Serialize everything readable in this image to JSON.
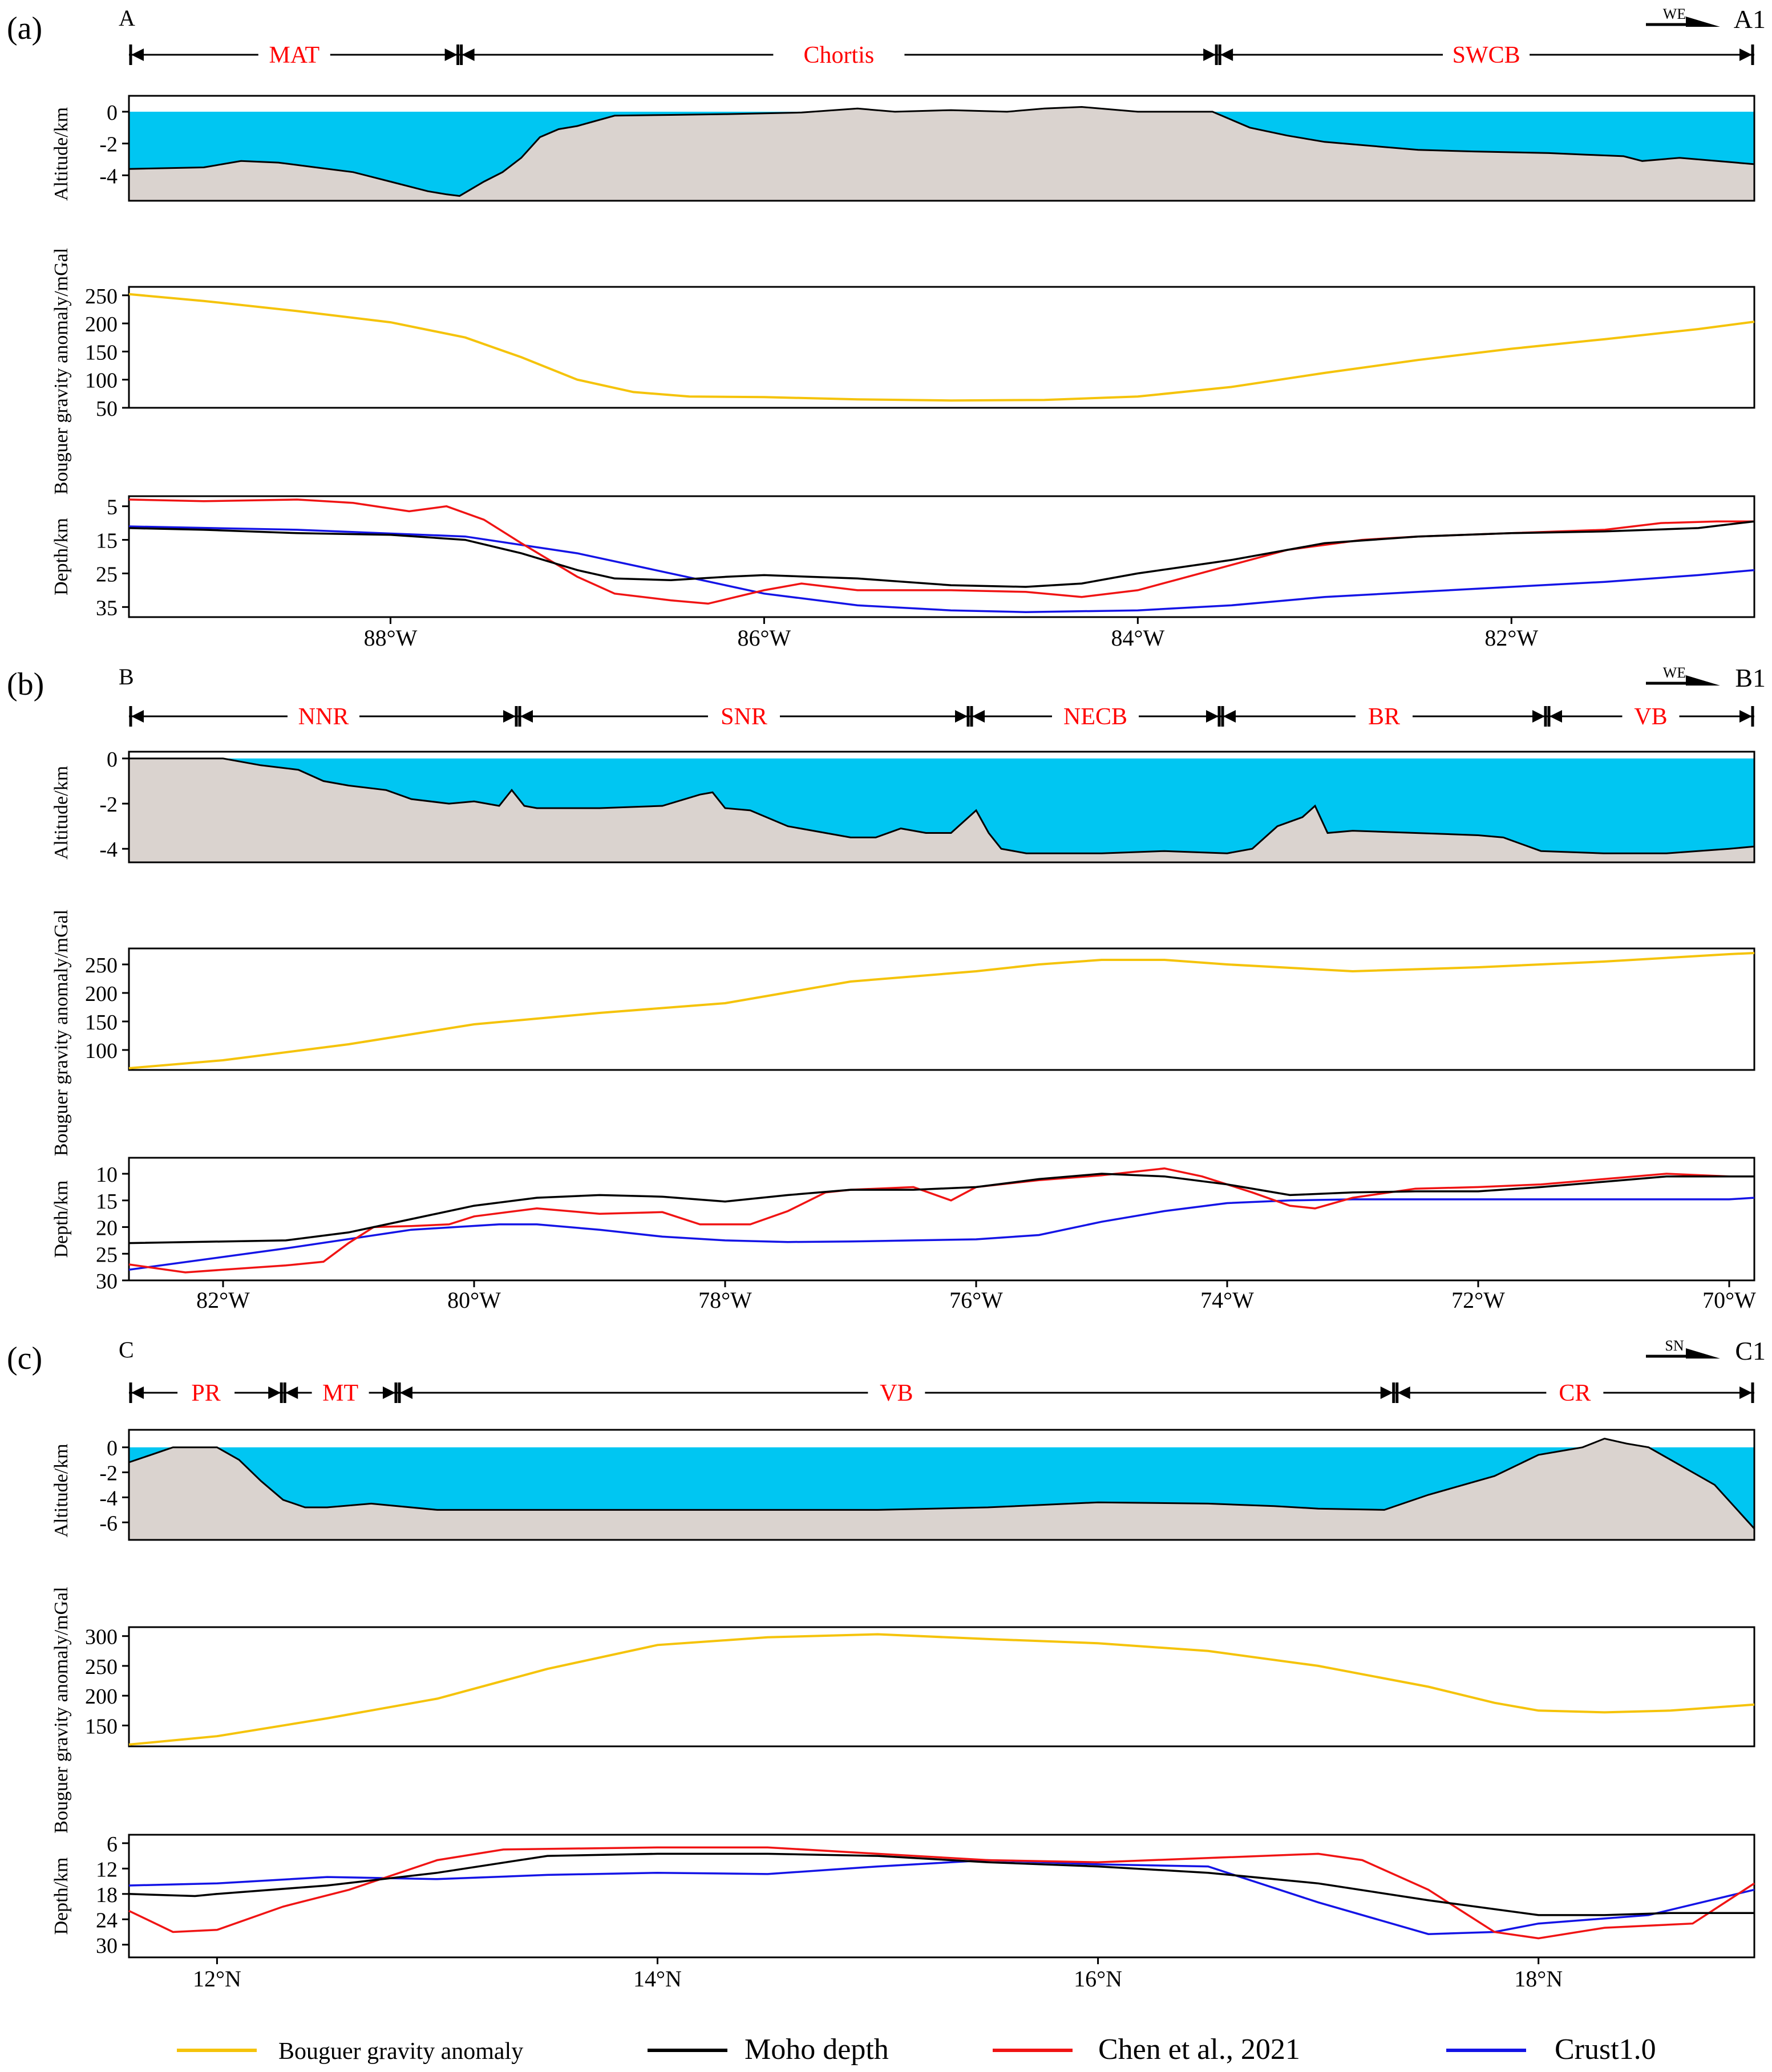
{
  "colors": {
    "sea": "#00c6f2",
    "land": "#dad3cf",
    "bouguer": "#f5c30a",
    "moho": "#000000",
    "chen": "#f01414",
    "crust": "#1414e6",
    "label_red": "#ff0000"
  },
  "legend": [
    {
      "key": "bouguer",
      "label": "Bouguer gravity anomaly"
    },
    {
      "key": "moho",
      "label": "Moho depth"
    },
    {
      "key": "chen",
      "label": "Chen et al., 2021"
    },
    {
      "key": "crust",
      "label": "Crust1.0"
    }
  ],
  "chart_data": [
    {
      "type": "line",
      "panel_label": "(a)",
      "start_label": "A",
      "end_label": "A1",
      "direction": "WE",
      "x_unit": "W",
      "xlim": [
        -89.4,
        -80.7
      ],
      "xticks": [
        -88,
        -86,
        -84,
        -82
      ],
      "xtick_labels": [
        "88°W",
        "86°W",
        "84°W",
        "82°W"
      ],
      "regions": [
        {
          "name": "MAT",
          "from": -89.4,
          "to": -87.63
        },
        {
          "name": "Chortis",
          "from": -87.63,
          "to": -83.57
        },
        {
          "name": "SWCB",
          "from": -83.57,
          "to": -80.7
        }
      ],
      "altitude": {
        "ylabel": "Altitude/km",
        "ylim": [
          -5.6,
          1.0
        ],
        "yticks": [
          0,
          -2,
          -4
        ],
        "x": [
          -89.4,
          -89.0,
          -88.8,
          -88.6,
          -88.4,
          -88.2,
          -88.0,
          -87.8,
          -87.7,
          -87.63,
          -87.5,
          -87.4,
          -87.3,
          -87.2,
          -87.1,
          -87.0,
          -86.8,
          -86.5,
          -86.2,
          -86.0,
          -85.8,
          -85.5,
          -85.3,
          -85.0,
          -84.7,
          -84.5,
          -84.3,
          -84.0,
          -83.8,
          -83.6,
          -83.4,
          -83.2,
          -83.0,
          -82.7,
          -82.5,
          -82.2,
          -82.0,
          -81.8,
          -81.6,
          -81.4,
          -81.3,
          -81.1,
          -80.9,
          -80.7
        ],
        "y": [
          -3.6,
          -3.5,
          -3.1,
          -3.2,
          -3.5,
          -3.8,
          -4.4,
          -5.0,
          -5.2,
          -5.3,
          -4.4,
          -3.8,
          -2.9,
          -1.6,
          -1.1,
          -0.9,
          -0.25,
          -0.2,
          -0.15,
          -0.1,
          -0.05,
          0.2,
          0.0,
          0.1,
          0.0,
          0.2,
          0.3,
          0.0,
          0.0,
          0.0,
          -1.0,
          -1.5,
          -1.9,
          -2.2,
          -2.4,
          -2.5,
          -2.55,
          -2.6,
          -2.7,
          -2.8,
          -3.1,
          -2.9,
          -3.1,
          -3.3
        ]
      },
      "gravity": {
        "ylabel": "Bouguer gravity anomaly/mGal",
        "ylim": [
          50,
          265
        ],
        "yticks": [
          250,
          200,
          150,
          100,
          50
        ],
        "x": [
          -89.4,
          -89.0,
          -88.5,
          -88.0,
          -87.6,
          -87.3,
          -87.0,
          -86.7,
          -86.4,
          -86.0,
          -85.5,
          -85.0,
          -84.5,
          -84.0,
          -83.5,
          -83.0,
          -82.5,
          -82.0,
          -81.5,
          -81.0,
          -80.7
        ],
        "y": [
          252,
          240,
          222,
          202,
          175,
          140,
          100,
          78,
          70,
          69,
          65,
          63,
          64,
          70,
          87,
          112,
          135,
          155,
          172,
          190,
          203
        ]
      },
      "depth": {
        "ylabel": "Depth/km",
        "ylim": [
          38,
          2
        ],
        "yticks": [
          5,
          15,
          25,
          35
        ],
        "moho": {
          "x": [
            -89.4,
            -89.0,
            -88.5,
            -88.0,
            -87.6,
            -87.3,
            -87.0,
            -86.8,
            -86.5,
            -86.2,
            -86.0,
            -85.5,
            -85.0,
            -84.6,
            -84.3,
            -84.0,
            -83.5,
            -83.0,
            -82.5,
            -82.0,
            -81.5,
            -81.0,
            -80.7
          ],
          "y": [
            11.5,
            12,
            13,
            13.5,
            15,
            19,
            24,
            26.5,
            27,
            26,
            25.5,
            26.5,
            28.5,
            29,
            28,
            25,
            21,
            16,
            14,
            13,
            12.5,
            11.5,
            9.5
          ]
        },
        "chen": {
          "x": [
            -89.4,
            -89.0,
            -88.5,
            -88.2,
            -87.9,
            -87.7,
            -87.5,
            -87.3,
            -87.0,
            -86.8,
            -86.5,
            -86.3,
            -86.0,
            -85.8,
            -85.5,
            -85.0,
            -84.6,
            -84.3,
            -84.0,
            -83.6,
            -83.2,
            -82.8,
            -82.5,
            -82.0,
            -81.5,
            -81.2,
            -80.9,
            -80.7
          ],
          "y": [
            3,
            3.5,
            3,
            4,
            6.5,
            5,
            9,
            16,
            26,
            31,
            33,
            34,
            30,
            28,
            30,
            30,
            30.5,
            32,
            30,
            24,
            18,
            15,
            14,
            13,
            12,
            10,
            9.5,
            9.5
          ]
        },
        "crust": {
          "x": [
            -89.4,
            -88.5,
            -87.6,
            -87.0,
            -86.5,
            -86.0,
            -85.5,
            -85.0,
            -84.6,
            -84.0,
            -83.5,
            -83.0,
            -82.5,
            -82.0,
            -81.5,
            -81.0,
            -80.7
          ],
          "y": [
            11,
            12,
            14,
            19,
            25,
            31,
            34.5,
            36,
            36.5,
            36,
            34.5,
            32,
            30.5,
            29,
            27.5,
            25.5,
            24
          ]
        }
      }
    },
    {
      "type": "line",
      "panel_label": "(b)",
      "start_label": "B",
      "end_label": "B1",
      "direction": "WE",
      "x_unit": "W",
      "xlim": [
        -82.75,
        -69.8
      ],
      "xticks": [
        -82,
        -80,
        -78,
        -76,
        -74,
        -72,
        -70
      ],
      "xtick_labels": [
        "82°W",
        "80°W",
        "78°W",
        "76°W",
        "74°W",
        "72°W",
        "70°W"
      ],
      "regions": [
        {
          "name": "NNR",
          "from": -82.75,
          "to": -79.65
        },
        {
          "name": "SNR",
          "from": -79.65,
          "to": -76.05
        },
        {
          "name": "NECB",
          "from": -76.05,
          "to": -74.05
        },
        {
          "name": "BR",
          "from": -74.05,
          "to": -71.45
        },
        {
          "name": "VB",
          "from": -71.45,
          "to": -69.8
        }
      ],
      "altitude": {
        "ylabel": "Altitude/km",
        "ylim": [
          -4.6,
          0.3
        ],
        "yticks": [
          0,
          -2,
          -4
        ],
        "x": [
          -82.75,
          -82.0,
          -81.7,
          -81.4,
          -81.2,
          -81.0,
          -80.7,
          -80.5,
          -80.2,
          -80.0,
          -79.8,
          -79.7,
          -79.6,
          -79.5,
          -79.0,
          -78.5,
          -78.2,
          -78.1,
          -78.0,
          -77.8,
          -77.5,
          -77.0,
          -76.8,
          -76.6,
          -76.4,
          -76.2,
          -76.0,
          -75.9,
          -75.8,
          -75.6,
          -75.0,
          -74.5,
          -74.0,
          -73.8,
          -73.6,
          -73.4,
          -73.3,
          -73.2,
          -73.0,
          -72.5,
          -72.0,
          -71.8,
          -71.5,
          -71.0,
          -70.5,
          -70.0,
          -69.8
        ],
        "y": [
          0.0,
          0.0,
          -0.3,
          -0.5,
          -1.0,
          -1.2,
          -1.4,
          -1.8,
          -2.0,
          -1.9,
          -2.1,
          -1.4,
          -2.1,
          -2.2,
          -2.2,
          -2.1,
          -1.6,
          -1.5,
          -2.2,
          -2.3,
          -3.0,
          -3.5,
          -3.5,
          -3.1,
          -3.3,
          -3.3,
          -2.3,
          -3.3,
          -4.0,
          -4.2,
          -4.2,
          -4.1,
          -4.2,
          -4.0,
          -3.0,
          -2.6,
          -2.1,
          -3.3,
          -3.2,
          -3.3,
          -3.4,
          -3.5,
          -4.1,
          -4.2,
          -4.2,
          -4.0,
          -3.9
        ]
      },
      "gravity": {
        "ylabel": "Bouguer gravity anomaly/mGal",
        "ylim": [
          65,
          278
        ],
        "yticks": [
          250,
          200,
          150,
          100
        ],
        "x": [
          -82.75,
          -82.0,
          -81.0,
          -80.0,
          -79.0,
          -78.0,
          -77.0,
          -76.0,
          -75.5,
          -75.0,
          -74.5,
          -74.0,
          -73.0,
          -72.0,
          -71.0,
          -70.0,
          -69.8
        ],
        "y": [
          68,
          82,
          110,
          145,
          165,
          182,
          220,
          238,
          250,
          258,
          258,
          250,
          238,
          245,
          255,
          268,
          270
        ]
      },
      "depth": {
        "ylabel": "Depth/km",
        "ylim": [
          30,
          7
        ],
        "yticks": [
          10,
          15,
          20,
          25,
          30
        ],
        "moho": {
          "x": [
            -82.75,
            -81.5,
            -81.0,
            -80.5,
            -80.0,
            -79.5,
            -79.0,
            -78.5,
            -78.0,
            -77.5,
            -77.0,
            -76.5,
            -76.0,
            -75.5,
            -75.0,
            -74.5,
            -74.0,
            -73.5,
            -73.0,
            -72.5,
            -72.0,
            -71.5,
            -71.0,
            -70.5,
            -70.0,
            -69.8
          ],
          "y": [
            23,
            22.5,
            21,
            18.5,
            16,
            14.5,
            14,
            14.3,
            15.2,
            14,
            13,
            13,
            12.5,
            11,
            10,
            10.5,
            12,
            14,
            13.5,
            13.3,
            13.3,
            12.5,
            11.5,
            10.5,
            10.5,
            10.5
          ]
        },
        "chen": {
          "x": [
            -82.75,
            -82.3,
            -82.0,
            -81.5,
            -81.2,
            -81.0,
            -80.8,
            -80.5,
            -80.2,
            -80.0,
            -79.5,
            -79.0,
            -78.5,
            -78.2,
            -77.8,
            -77.5,
            -77.2,
            -77.0,
            -76.5,
            -76.2,
            -76.0,
            -75.5,
            -75.0,
            -74.5,
            -74.2,
            -73.8,
            -73.5,
            -73.3,
            -73.0,
            -72.5,
            -72.0,
            -71.5,
            -71.0,
            -70.5,
            -70.0,
            -69.8
          ],
          "y": [
            27,
            28.5,
            28,
            27.2,
            26.5,
            23,
            20,
            19.8,
            19.5,
            18,
            16.5,
            17.5,
            17.2,
            19.5,
            19.5,
            17,
            13.5,
            13,
            12.5,
            15,
            12.5,
            11.2,
            10.3,
            9,
            10.5,
            13.5,
            16,
            16.5,
            14.5,
            12.8,
            12.5,
            12,
            11,
            10,
            10.5,
            10.5
          ]
        },
        "crust": {
          "x": [
            -82.75,
            -81.5,
            -80.5,
            -79.8,
            -79.5,
            -79.0,
            -78.5,
            -78.0,
            -77.5,
            -77.0,
            -76.5,
            -76.0,
            -75.5,
            -75.0,
            -74.5,
            -74.0,
            -73.5,
            -73.0,
            -72.5,
            -72.0,
            -71.0,
            -70.0,
            -69.8
          ],
          "y": [
            28,
            24,
            20.5,
            19.5,
            19.5,
            20.5,
            21.8,
            22.5,
            22.8,
            22.7,
            22.5,
            22.3,
            21.5,
            19,
            17,
            15.5,
            15,
            14.8,
            14.8,
            14.8,
            14.8,
            14.8,
            14.5
          ]
        }
      }
    },
    {
      "type": "line",
      "panel_label": "(c)",
      "start_label": "C",
      "end_label": "C1",
      "direction": "SN",
      "x_unit": "N",
      "xlim": [
        11.6,
        18.98
      ],
      "xticks": [
        12,
        14,
        16,
        18
      ],
      "xtick_labels": [
        "12°N",
        "14°N",
        "16°N",
        "18°N"
      ],
      "regions": [
        {
          "name": "PR",
          "from": 11.6,
          "to": 12.3
        },
        {
          "name": "MT",
          "from": 12.3,
          "to": 12.82
        },
        {
          "name": "VB",
          "from": 12.82,
          "to": 17.35
        },
        {
          "name": "CR",
          "from": 17.35,
          "to": 18.98
        }
      ],
      "altitude": {
        "ylabel": "Altitude/km",
        "ylim": [
          -7.4,
          1.4
        ],
        "yticks": [
          0,
          -2,
          -4,
          -6
        ],
        "x": [
          11.6,
          11.7,
          11.8,
          12.0,
          12.1,
          12.2,
          12.3,
          12.4,
          12.5,
          12.7,
          13.0,
          14.0,
          15.0,
          15.5,
          16.0,
          16.5,
          16.8,
          17.0,
          17.3,
          17.5,
          17.8,
          18.0,
          18.2,
          18.3,
          18.4,
          18.5,
          18.6,
          18.8,
          18.98
        ],
        "y": [
          -1.2,
          -0.6,
          0.0,
          0.0,
          -1.0,
          -2.7,
          -4.2,
          -4.8,
          -4.8,
          -4.5,
          -5.0,
          -5.0,
          -5.0,
          -4.8,
          -4.4,
          -4.5,
          -4.7,
          -4.9,
          -5.0,
          -3.8,
          -2.3,
          -0.6,
          0.0,
          0.7,
          0.3,
          0.0,
          -1.0,
          -3.0,
          -6.5
        ]
      },
      "gravity": {
        "ylabel": "Bouguer gravity anomaly/mGal",
        "ylim": [
          115,
          315
        ],
        "yticks": [
          300,
          250,
          200,
          150
        ],
        "x": [
          11.6,
          12.0,
          12.5,
          13.0,
          13.5,
          14.0,
          14.5,
          15.0,
          15.5,
          16.0,
          16.5,
          17.0,
          17.5,
          17.8,
          18.0,
          18.3,
          18.6,
          18.98
        ],
        "y": [
          118,
          132,
          162,
          195,
          245,
          285,
          298,
          303,
          295,
          288,
          275,
          250,
          215,
          188,
          175,
          172,
          175,
          185
        ]
      },
      "depth": {
        "ylabel": "Depth/km",
        "ylim": [
          33,
          4
        ],
        "yticks": [
          6,
          12,
          18,
          24,
          30
        ],
        "moho": {
          "x": [
            11.6,
            11.9,
            12.0,
            12.5,
            13.0,
            13.5,
            14.0,
            14.5,
            15.0,
            15.5,
            16.0,
            16.5,
            17.0,
            17.5,
            18.0,
            18.3,
            18.6,
            18.98
          ],
          "y": [
            18,
            18.5,
            18,
            16,
            13,
            9,
            8.5,
            8.5,
            9,
            10.5,
            11.5,
            13,
            15.5,
            19.5,
            23,
            23,
            22.5,
            22.5
          ]
        },
        "chen": {
          "x": [
            11.6,
            11.8,
            12.0,
            12.3,
            12.6,
            13.0,
            13.3,
            14.0,
            14.5,
            15.0,
            15.5,
            16.0,
            16.5,
            17.0,
            17.2,
            17.5,
            17.8,
            18.0,
            18.3,
            18.5,
            18.7,
            18.98
          ],
          "y": [
            22,
            27,
            26.5,
            21,
            17,
            10,
            7.5,
            7,
            7,
            8.5,
            10,
            10.5,
            9.5,
            8.5,
            10,
            17,
            27,
            28.5,
            26,
            25.5,
            25,
            15.5
          ]
        },
        "crust": {
          "x": [
            11.6,
            12.0,
            12.5,
            13.0,
            13.5,
            14.0,
            14.5,
            15.0,
            15.5,
            16.0,
            16.5,
            17.0,
            17.5,
            17.8,
            18.0,
            18.5,
            18.98
          ],
          "y": [
            16,
            15.5,
            14,
            14.5,
            13.5,
            13,
            13.3,
            11.5,
            10,
            11,
            11.5,
            20,
            27.5,
            27,
            25,
            23,
            17
          ]
        }
      }
    }
  ]
}
